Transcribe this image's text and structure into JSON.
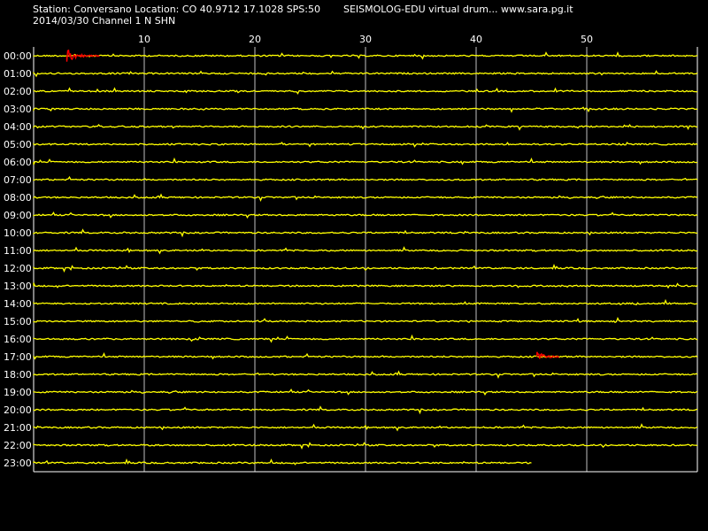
{
  "header": {
    "station_line": "Station: Conversano Location: CO 40.9712 17.1028 SPS:50",
    "date_line": "2014/03/30  Channel 1 N SHN",
    "credit_line": "SEISMOLOG-EDU virtual drum... www.sara.pg.it"
  },
  "colors": {
    "background": "#000000",
    "trace": "#ffff00",
    "event": "#ff0000",
    "grid": "#ffffff",
    "text": "#ffffff"
  },
  "chart_data": {
    "type": "line",
    "title": "",
    "xlabel": "",
    "ylabel": "",
    "x_ticks": [
      10,
      20,
      30,
      40,
      50
    ],
    "xlim": [
      0,
      60
    ],
    "rows": [
      "00:00",
      "01:00",
      "02:00",
      "03:00",
      "04:00",
      "05:00",
      "06:00",
      "07:00",
      "08:00",
      "09:00",
      "10:00",
      "11:00",
      "12:00",
      "13:00",
      "14:00",
      "15:00",
      "16:00",
      "17:00",
      "18:00",
      "19:00",
      "20:00",
      "21:00",
      "22:00",
      "23:00"
    ],
    "last_row_end_minute": 45,
    "events": [
      {
        "row": "00:00",
        "start_minute": 3,
        "end_minute": 6,
        "color": "red"
      },
      {
        "row": "17:00",
        "start_minute": 45.5,
        "end_minute": 47.5,
        "color": "red"
      }
    ]
  }
}
